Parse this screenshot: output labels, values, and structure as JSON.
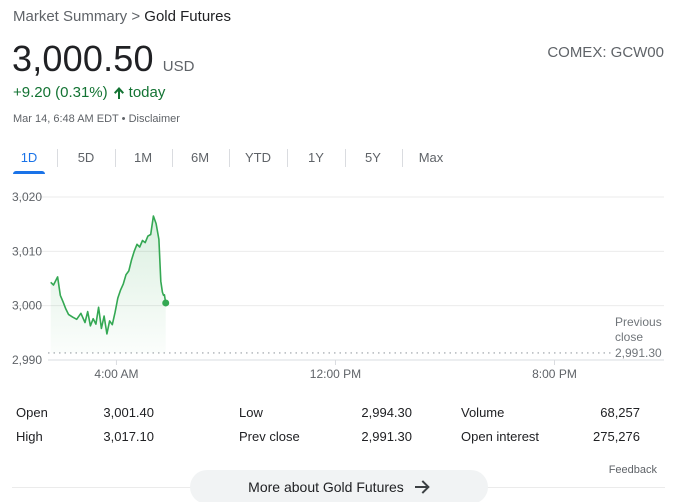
{
  "breadcrumb": {
    "parent": "Market Summary",
    "separator": ">",
    "current": "Gold Futures"
  },
  "quote": {
    "price": "3,000.50",
    "currency": "USD",
    "exchange": "COMEX: GCW00",
    "change": "+9.20 (0.31%)",
    "change_period": "today",
    "change_color": "#137333",
    "timestamp": "Mar 14, 6:48 AM EDT",
    "bullet": "•",
    "disclaimer": "Disclaimer"
  },
  "tabs": [
    {
      "label": "1D",
      "active": true
    },
    {
      "label": "5D",
      "active": false
    },
    {
      "label": "1M",
      "active": false
    },
    {
      "label": "6M",
      "active": false
    },
    {
      "label": "YTD",
      "active": false
    },
    {
      "label": "1Y",
      "active": false
    },
    {
      "label": "5Y",
      "active": false
    },
    {
      "label": "Max",
      "active": false
    }
  ],
  "chart_data": {
    "type": "line",
    "ylim": [
      2990,
      3020
    ],
    "y_ticks": [
      "3,020",
      "3,010",
      "3,000",
      "2,990"
    ],
    "y_tick_values": [
      3020,
      3010,
      3000,
      2990
    ],
    "x_ticks": [
      "4:00 AM",
      "12:00 PM",
      "8:00 PM"
    ],
    "x_tick_hours": [
      4,
      12,
      20
    ],
    "x_range_hours": [
      1.5,
      24
    ],
    "grid": true,
    "line_color": "#34a853",
    "previous_close": {
      "label_line1": "Previous",
      "label_line2": "close",
      "value_label": "2,991.30",
      "value": 2991.3
    },
    "series": [
      {
        "x": [
          1.6,
          1.7,
          1.85,
          1.95,
          2.05,
          2.15,
          2.25,
          2.4,
          2.55,
          2.7,
          2.85,
          2.95,
          3.05,
          3.15,
          3.25,
          3.35,
          3.45,
          3.55,
          3.65,
          3.75,
          3.85,
          3.95,
          4.05,
          4.15,
          4.25,
          4.35,
          4.45,
          4.55,
          4.65,
          4.75,
          4.85,
          4.95,
          5.05,
          5.15,
          5.25,
          5.35,
          5.45,
          5.55,
          5.62,
          5.68,
          5.72,
          5.75,
          5.8
        ],
        "y": [
          3004.3,
          3003.8,
          3005.3,
          3001.9,
          3000.7,
          2999.4,
          2998.4,
          2997.9,
          2997.5,
          2998.6,
          2996.9,
          2998.9,
          2996.3,
          2997.6,
          2996.6,
          2999.7,
          2995.8,
          2998.1,
          2994.8,
          2997.2,
          2996.5,
          2998.8,
          3001.4,
          3002.9,
          3004.0,
          3005.7,
          3006.4,
          3008.4,
          3010.0,
          3011.3,
          3010.8,
          3012.0,
          3011.6,
          3012.8,
          3013.1,
          3016.5,
          3015.1,
          3012.2,
          3004.5,
          3002.5,
          3001.9,
          3002.0,
          3000.5
        ]
      }
    ]
  },
  "stats": [
    {
      "label": "Open",
      "value": "3,001.40"
    },
    {
      "label": "High",
      "value": "3,017.10"
    },
    {
      "label": "Low",
      "value": "2,994.30"
    },
    {
      "label": "Prev close",
      "value": "2,991.30"
    },
    {
      "label": "Volume",
      "value": "68,257"
    },
    {
      "label": "Open interest",
      "value": "275,276"
    }
  ],
  "feedback_label": "Feedback",
  "more_button_label": "More about Gold Futures",
  "icons": {
    "up_arrow": "arrow-up-icon",
    "more_arrow": "arrow-right-icon"
  }
}
